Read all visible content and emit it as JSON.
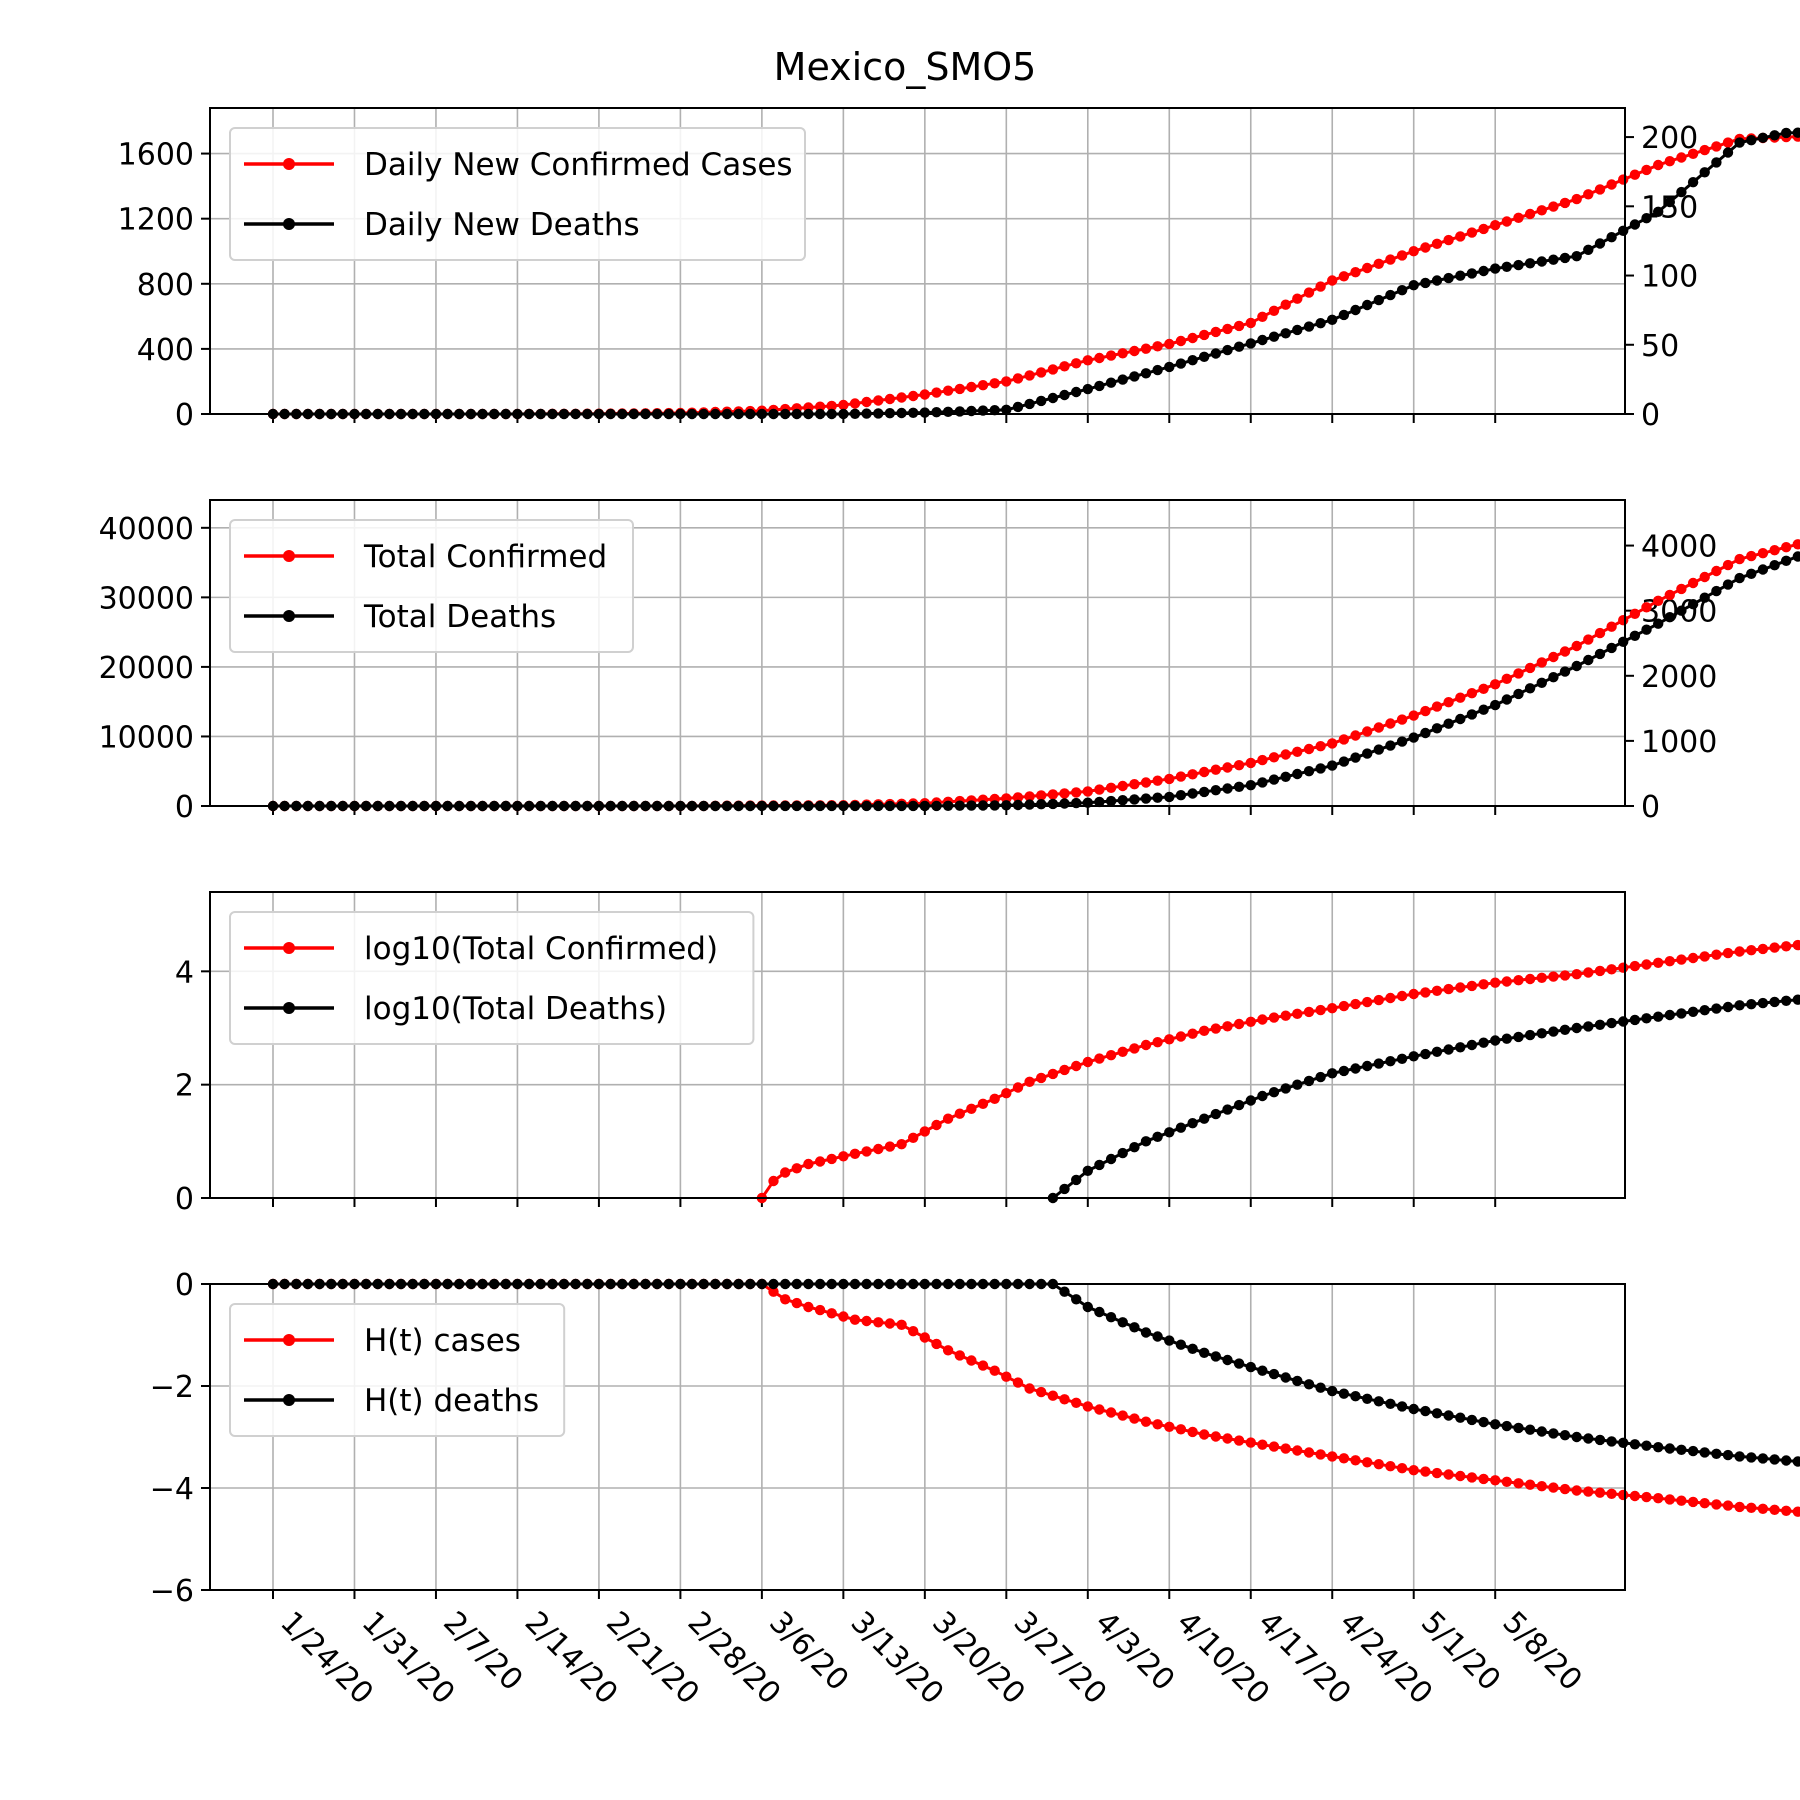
{
  "figure": {
    "title": "Mexico_SMO5"
  },
  "x_tick_labels": [
    "1/24/20",
    "1/31/20",
    "2/7/20",
    "2/14/20",
    "2/21/20",
    "2/28/20",
    "3/6/20",
    "3/13/20",
    "3/20/20",
    "3/27/20",
    "4/3/20",
    "4/10/20",
    "4/17/20",
    "4/24/20",
    "5/1/20",
    "5/8/20"
  ],
  "colors": {
    "cases": "#ff0000",
    "deaths": "#000000",
    "grid": "#b0b0b0"
  },
  "chart_data": [
    {
      "type": "line",
      "title": "Mexico_SMO5",
      "x_start": "1/24/20",
      "ylim": [
        0,
        1880
      ],
      "yticks": [
        0,
        400,
        800,
        1200,
        1600
      ],
      "y2lim": [
        0,
        221
      ],
      "y2ticks": [
        0,
        50,
        100,
        150,
        200
      ],
      "grid": true,
      "legend_placement": "upper-left",
      "series": [
        {
          "name": "Daily New Confirmed Cases",
          "axis": "left",
          "color": "#ff0000",
          "start_day": 0,
          "keypoints": [
            [
              0,
              0
            ],
            [
              20,
              0
            ],
            [
              28,
              2
            ],
            [
              35,
              6
            ],
            [
              42,
              20
            ],
            [
              49,
              55
            ],
            [
              56,
              120
            ],
            [
              63,
              200
            ],
            [
              70,
              330
            ],
            [
              77,
              430
            ],
            [
              84,
              560
            ],
            [
              91,
              820
            ],
            [
              98,
              1000
            ],
            [
              105,
              1160
            ],
            [
              112,
              1320
            ],
            [
              119,
              1530
            ],
            [
              126,
              1690
            ],
            [
              133,
              1710
            ],
            [
              137,
              1710
            ]
          ]
        },
        {
          "name": "Daily New Deaths",
          "axis": "right",
          "color": "#000000",
          "start_day": 0,
          "keypoints": [
            [
              0,
              0
            ],
            [
              49,
              0
            ],
            [
              56,
              1
            ],
            [
              63,
              3
            ],
            [
              70,
              18
            ],
            [
              77,
              34
            ],
            [
              84,
              51
            ],
            [
              91,
              68
            ],
            [
              98,
              93
            ],
            [
              105,
              105
            ],
            [
              112,
              114
            ],
            [
              119,
              146
            ],
            [
              126,
              196
            ],
            [
              130,
              203
            ],
            [
              137,
              204
            ]
          ]
        }
      ]
    },
    {
      "type": "line",
      "ylim": [
        0,
        44000
      ],
      "yticks": [
        0,
        10000,
        20000,
        30000,
        40000
      ],
      "y2lim": [
        0,
        4700
      ],
      "y2ticks": [
        0,
        1000,
        2000,
        3000,
        4000
      ],
      "grid": true,
      "legend_placement": "upper-left",
      "series": [
        {
          "name": "Total Confirmed",
          "axis": "left",
          "color": "#ff0000",
          "start_day": 0,
          "keypoints": [
            [
              0,
              0
            ],
            [
              35,
              5
            ],
            [
              49,
              120
            ],
            [
              56,
              400
            ],
            [
              63,
              1100
            ],
            [
              70,
              2100
            ],
            [
              77,
              3900
            ],
            [
              84,
              6200
            ],
            [
              91,
              9000
            ],
            [
              98,
              13000
            ],
            [
              105,
              17500
            ],
            [
              112,
              23000
            ],
            [
              119,
              29500
            ],
            [
              126,
              35500
            ],
            [
              137,
              40200
            ]
          ]
        },
        {
          "name": "Total Deaths",
          "axis": "right",
          "color": "#000000",
          "start_day": 0,
          "keypoints": [
            [
              0,
              0
            ],
            [
              56,
              1
            ],
            [
              63,
              10
            ],
            [
              70,
              50
            ],
            [
              77,
              140
            ],
            [
              84,
              320
            ],
            [
              91,
              620
            ],
            [
              98,
              1050
            ],
            [
              105,
              1550
            ],
            [
              112,
              2150
            ],
            [
              119,
              2800
            ],
            [
              126,
              3500
            ],
            [
              137,
              4230
            ]
          ]
        }
      ]
    },
    {
      "type": "line",
      "ylim": [
        0,
        5.4
      ],
      "yticks": [
        0,
        2,
        4
      ],
      "grid": true,
      "legend_placement": "upper-left",
      "series": [
        {
          "name": "log10(Total Confirmed)",
          "color": "#ff0000",
          "start_day": 42,
          "keypoints": [
            [
              42,
              0
            ],
            [
              43,
              0.3
            ],
            [
              44,
              0.45
            ],
            [
              46,
              0.6
            ],
            [
              50,
              0.78
            ],
            [
              54,
              0.95
            ],
            [
              58,
              1.4
            ],
            [
              62,
              1.75
            ],
            [
              65,
              2.05
            ],
            [
              70,
              2.4
            ],
            [
              75,
              2.7
            ],
            [
              80,
              2.95
            ],
            [
              85,
              3.15
            ],
            [
              91,
              3.35
            ],
            [
              98,
              3.6
            ],
            [
              105,
              3.8
            ],
            [
              112,
              3.95
            ],
            [
              119,
              4.15
            ],
            [
              126,
              4.35
            ],
            [
              137,
              4.6
            ]
          ]
        },
        {
          "name": "log10(Total Deaths)",
          "color": "#000000",
          "start_day": 67,
          "keypoints": [
            [
              67,
              0
            ],
            [
              70,
              0.48
            ],
            [
              75,
              1.0
            ],
            [
              80,
              1.4
            ],
            [
              85,
              1.8
            ],
            [
              91,
              2.2
            ],
            [
              98,
              2.5
            ],
            [
              105,
              2.78
            ],
            [
              112,
              3.0
            ],
            [
              119,
              3.2
            ],
            [
              126,
              3.4
            ],
            [
              137,
              3.62
            ]
          ]
        }
      ]
    },
    {
      "type": "line",
      "ylim": [
        -6,
        0
      ],
      "yticks": [
        -6,
        -4,
        -2,
        0
      ],
      "ytick_labels": [
        "−6",
        "−4",
        "−2",
        "0"
      ],
      "grid": true,
      "legend_placement": "upper-left",
      "series": [
        {
          "name": "H(t) cases",
          "color": "#ff0000",
          "start_day": 0,
          "keypoints": [
            [
              0,
              0
            ],
            [
              42,
              0
            ],
            [
              44,
              -0.3
            ],
            [
              46,
              -0.45
            ],
            [
              50,
              -0.7
            ],
            [
              54,
              -0.8
            ],
            [
              58,
              -1.3
            ],
            [
              62,
              -1.7
            ],
            [
              65,
              -2.05
            ],
            [
              70,
              -2.4
            ],
            [
              75,
              -2.7
            ],
            [
              80,
              -2.95
            ],
            [
              85,
              -3.15
            ],
            [
              91,
              -3.38
            ],
            [
              98,
              -3.65
            ],
            [
              105,
              -3.85
            ],
            [
              112,
              -4.05
            ],
            [
              119,
              -4.2
            ],
            [
              126,
              -4.37
            ],
            [
              137,
              -4.58
            ]
          ]
        },
        {
          "name": "H(t) deaths",
          "color": "#000000",
          "start_day": 0,
          "keypoints": [
            [
              0,
              0
            ],
            [
              60,
              0
            ],
            [
              67,
              0.0
            ],
            [
              70,
              -0.45
            ],
            [
              75,
              -0.95
            ],
            [
              80,
              -1.35
            ],
            [
              85,
              -1.7
            ],
            [
              91,
              -2.1
            ],
            [
              98,
              -2.45
            ],
            [
              105,
              -2.75
            ],
            [
              112,
              -3.0
            ],
            [
              119,
              -3.2
            ],
            [
              126,
              -3.38
            ],
            [
              137,
              -3.6
            ]
          ]
        }
      ]
    }
  ]
}
